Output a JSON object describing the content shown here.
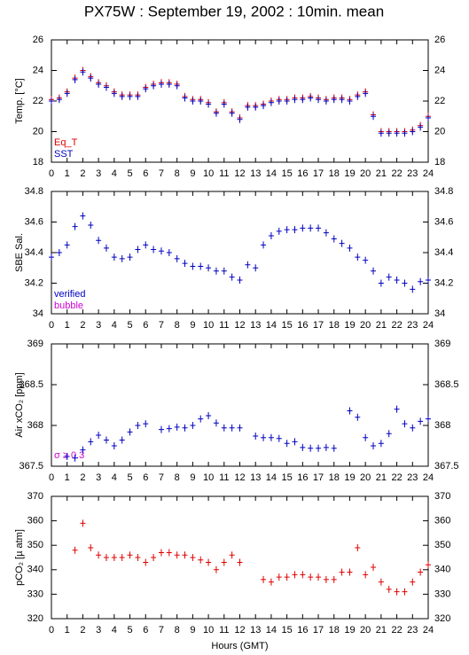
{
  "title": "PX75W : September 19, 2002 : 10min. mean",
  "chart_data": [
    {
      "type": "scatter",
      "ylabel": "Temp. [°C]",
      "x": [
        0,
        0.5,
        1,
        1.5,
        2,
        2.5,
        3,
        3.5,
        4,
        4.5,
        5,
        5.5,
        6,
        6.5,
        7,
        7.5,
        8,
        8.5,
        9,
        9.5,
        10,
        10.5,
        11,
        11.5,
        12,
        12.5,
        13,
        13.5,
        14,
        14.5,
        15,
        15.5,
        16,
        16.5,
        17,
        17.5,
        18,
        18.5,
        19,
        19.5,
        20,
        20.5,
        21,
        21.5,
        22,
        22.5,
        23,
        23.5,
        24
      ],
      "xlim": [
        0,
        24
      ],
      "xticks": [
        0,
        1,
        2,
        3,
        4,
        5,
        6,
        7,
        8,
        9,
        10,
        11,
        12,
        13,
        14,
        15,
        16,
        17,
        18,
        19,
        20,
        21,
        22,
        23,
        24
      ],
      "ylim": [
        18,
        26
      ],
      "yticks": [
        18,
        20,
        22,
        24,
        26
      ],
      "series": [
        {
          "name": "Eq_T",
          "color": "#e00000",
          "values": [
            22.1,
            22.2,
            22.6,
            23.5,
            24.0,
            23.6,
            23.2,
            23.0,
            22.6,
            22.4,
            22.4,
            22.4,
            22.9,
            23.1,
            23.2,
            23.2,
            23.1,
            22.3,
            22.1,
            22.1,
            21.9,
            21.3,
            21.9,
            21.3,
            20.9,
            21.7,
            21.7,
            21.8,
            22.0,
            22.1,
            22.1,
            22.2,
            22.2,
            22.3,
            22.2,
            22.1,
            22.2,
            22.2,
            22.1,
            22.4,
            22.6,
            21.1,
            20.0,
            20.0,
            20.0,
            20.0,
            20.1,
            20.4,
            21.0
          ]
        },
        {
          "name": "SST",
          "color": "#0000c0",
          "values": [
            22.0,
            22.1,
            22.5,
            23.4,
            23.9,
            23.5,
            23.1,
            22.9,
            22.5,
            22.3,
            22.3,
            22.3,
            22.8,
            23.0,
            23.1,
            23.1,
            23.0,
            22.2,
            22.0,
            22.0,
            21.8,
            21.2,
            21.8,
            21.2,
            20.8,
            21.6,
            21.6,
            21.7,
            21.9,
            22.0,
            22.0,
            22.1,
            22.1,
            22.2,
            22.1,
            22.0,
            22.1,
            22.1,
            22.0,
            22.3,
            22.5,
            21.0,
            19.9,
            19.9,
            19.9,
            19.9,
            20.0,
            20.3,
            20.9
          ]
        }
      ]
    },
    {
      "type": "scatter",
      "ylabel": "SBE Sal.",
      "x": [
        0,
        0.5,
        1,
        1.5,
        2,
        2.5,
        3,
        3.5,
        4,
        4.5,
        5,
        5.5,
        6,
        6.5,
        7,
        7.5,
        8,
        8.5,
        9,
        9.5,
        10,
        10.5,
        11,
        11.5,
        12,
        12.5,
        13,
        13.5,
        14,
        14.5,
        15,
        15.5,
        16,
        16.5,
        17,
        17.5,
        18,
        18.5,
        19,
        19.5,
        20,
        20.5,
        21,
        21.5,
        22,
        22.5,
        23,
        23.5,
        24
      ],
      "xlim": [
        0,
        24
      ],
      "xticks": [
        0,
        1,
        2,
        3,
        4,
        5,
        6,
        7,
        8,
        9,
        10,
        11,
        12,
        13,
        14,
        15,
        16,
        17,
        18,
        19,
        20,
        21,
        22,
        23,
        24
      ],
      "ylim": [
        34,
        34.8
      ],
      "yticks": [
        34,
        34.2,
        34.4,
        34.6,
        34.8
      ],
      "annotations": [
        {
          "text": "bubble",
          "color": "#d000d0"
        }
      ],
      "series": [
        {
          "name": "verified",
          "color": "#0000c0",
          "values": [
            34.37,
            34.4,
            34.45,
            34.57,
            34.64,
            34.58,
            34.48,
            34.43,
            34.37,
            34.36,
            34.37,
            34.42,
            34.45,
            34.42,
            34.41,
            34.4,
            34.36,
            34.33,
            34.31,
            34.31,
            34.3,
            34.28,
            34.28,
            34.24,
            34.22,
            34.32,
            34.3,
            34.45,
            34.51,
            34.54,
            34.55,
            34.55,
            34.56,
            34.56,
            34.56,
            34.53,
            34.49,
            34.46,
            34.43,
            34.37,
            34.35,
            34.28,
            34.2,
            34.24,
            34.22,
            34.2,
            34.16,
            34.21,
            34.22
          ]
        }
      ]
    },
    {
      "type": "scatter",
      "ylabel": "Air xCO₂ [ppm]",
      "x": [
        0,
        0.5,
        1,
        1.5,
        2,
        2.5,
        3,
        3.5,
        4,
        4.5,
        5,
        5.5,
        6,
        6.5,
        7,
        7.5,
        8,
        8.5,
        9,
        9.5,
        10,
        10.5,
        11,
        11.5,
        12,
        12.5,
        13,
        13.5,
        14,
        14.5,
        15,
        15.5,
        16,
        16.5,
        17,
        17.5,
        18,
        18.5,
        19,
        19.5,
        20,
        20.5,
        21,
        21.5,
        22,
        22.5,
        23,
        23.5,
        24
      ],
      "xlim": [
        0,
        24
      ],
      "xticks": [
        0,
        1,
        2,
        3,
        4,
        5,
        6,
        7,
        8,
        9,
        10,
        11,
        12,
        13,
        14,
        15,
        16,
        17,
        18,
        19,
        20,
        21,
        22,
        23,
        24
      ],
      "ylim": [
        367.5,
        369
      ],
      "yticks": [
        367.5,
        368,
        368.5,
        369
      ],
      "annotations": [
        {
          "text": "σ ≥ 0.3",
          "color": "#d000d0"
        }
      ],
      "series": [
        {
          "color": "#0000c0",
          "values": [
            null,
            null,
            367.62,
            367.6,
            367.7,
            367.8,
            367.88,
            367.82,
            367.75,
            367.82,
            367.92,
            368.0,
            368.02,
            null,
            367.95,
            367.96,
            367.98,
            367.97,
            368.0,
            368.08,
            368.12,
            368.03,
            367.97,
            367.97,
            367.97,
            null,
            367.87,
            367.85,
            367.85,
            367.84,
            367.78,
            367.8,
            367.73,
            367.72,
            367.72,
            367.73,
            367.72,
            null,
            368.18,
            368.1,
            367.85,
            367.75,
            367.78,
            367.9,
            368.2,
            368.02,
            367.97,
            368.05,
            368.08
          ]
        }
      ]
    },
    {
      "type": "scatter",
      "ylabel": "pCO₂ [µ atm]",
      "xlabel": "Hours (GMT)",
      "x": [
        0,
        0.5,
        1,
        1.5,
        2,
        2.5,
        3,
        3.5,
        4,
        4.5,
        5,
        5.5,
        6,
        6.5,
        7,
        7.5,
        8,
        8.5,
        9,
        9.5,
        10,
        10.5,
        11,
        11.5,
        12,
        12.5,
        13,
        13.5,
        14,
        14.5,
        15,
        15.5,
        16,
        16.5,
        17,
        17.5,
        18,
        18.5,
        19,
        19.5,
        20,
        20.5,
        21,
        21.5,
        22,
        22.5,
        23,
        23.5,
        24
      ],
      "xlim": [
        0,
        24
      ],
      "xticks": [
        0,
        1,
        2,
        3,
        4,
        5,
        6,
        7,
        8,
        9,
        10,
        11,
        12,
        13,
        14,
        15,
        16,
        17,
        18,
        19,
        20,
        21,
        22,
        23,
        24
      ],
      "ylim": [
        320,
        370
      ],
      "yticks": [
        320,
        330,
        340,
        350,
        360,
        370
      ],
      "series": [
        {
          "color": "#e00000",
          "values": [
            null,
            null,
            null,
            348,
            359,
            349,
            346,
            345,
            345,
            345,
            346,
            345,
            343,
            345,
            347,
            347,
            346,
            346,
            345,
            344,
            343,
            340,
            343,
            346,
            343,
            null,
            null,
            336,
            335,
            337,
            337,
            338,
            338,
            337,
            337,
            336,
            336,
            339,
            339,
            349,
            338,
            341,
            335,
            332,
            331,
            331,
            335,
            339,
            342
          ]
        }
      ]
    }
  ]
}
